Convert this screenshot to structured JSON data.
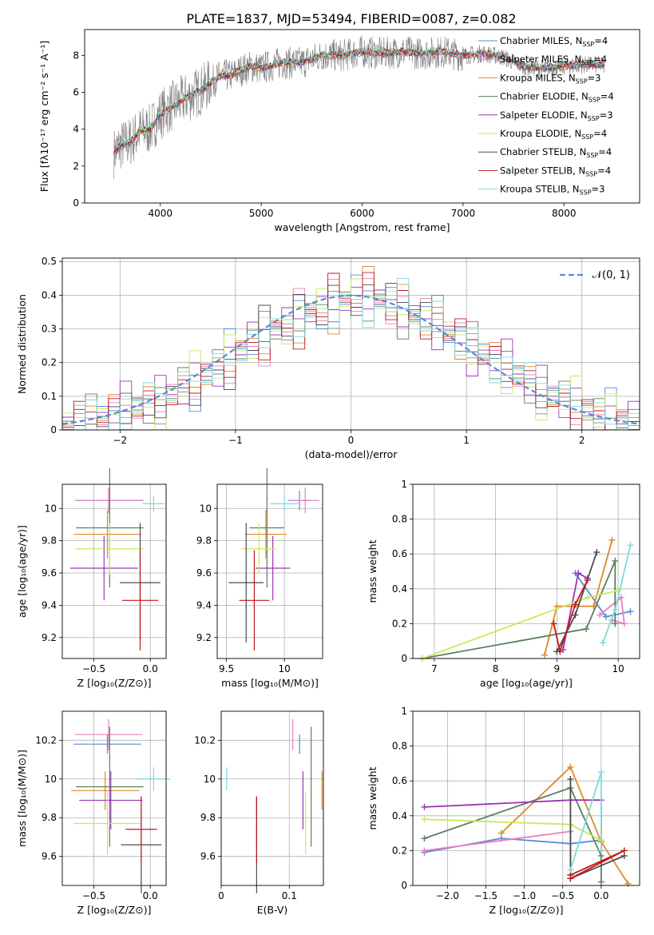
{
  "figure_title": "PLATE=1837, MJD=53494, FIBERID=0087, z=0.082",
  "colors": {
    "grid": "#b0b0b0",
    "norm_line": "#5a8ad8"
  },
  "chart_data": [
    {
      "id": "spectrum",
      "type": "line",
      "xlabel": "wavelength [Angstrom, rest frame]",
      "ylabel": "Flux [fλ10⁻¹⁷ erg cm⁻² s⁻¹ A⁻¹]",
      "xlim": [
        3250,
        8750
      ],
      "ylim": [
        0,
        9.4
      ],
      "xticks": [
        4000,
        5000,
        6000,
        7000,
        8000
      ],
      "yticks": [
        0,
        2,
        4,
        6,
        8
      ],
      "grid": false,
      "legend_placement": "upper-right",
      "data_x": [
        3540,
        3600,
        3700,
        3800,
        3900,
        4000,
        4100,
        4200,
        4300,
        4400,
        4500,
        4600,
        4700,
        4800,
        4900,
        5000,
        5200,
        5400,
        5600,
        5800,
        6000,
        6200,
        6400,
        6600,
        6800,
        7000,
        7200,
        7400,
        7600,
        7800,
        8000,
        8200,
        8400
      ],
      "data_y": [
        2.7,
        3.1,
        3.3,
        3.9,
        4.0,
        4.8,
        5.2,
        5.5,
        5.8,
        6.1,
        6.5,
        6.9,
        6.9,
        7.2,
        7.4,
        7.3,
        7.6,
        7.6,
        8.0,
        8.0,
        8.2,
        8.1,
        8.2,
        8.1,
        8.2,
        8.0,
        8.1,
        7.9,
        7.4,
        7.3,
        7.4,
        7.5,
        7.5
      ],
      "series": [
        {
          "name": "Chabrier MILES, N$_{SSP}$=4",
          "label_main": "Chabrier MILES, N",
          "color": "#5a8ad8"
        },
        {
          "name": "Salpeter MILES, N$_{SSP}$=4",
          "label_main": "Salpeter MILES, N",
          "color": "#e87fbf"
        },
        {
          "name": "Kroupa MILES, N$_{SSP}$=3",
          "label_main": "Kroupa MILES, N",
          "color": "#e08828"
        },
        {
          "name": "Chabrier ELODIE, N$_{SSP}$=4",
          "label_main": "Chabrier ELODIE, N",
          "color": "#5b7f5b"
        },
        {
          "name": "Salpeter ELODIE, N$_{SSP}$=3",
          "label_main": "Salpeter ELODIE, N",
          "color": "#9b35b3"
        },
        {
          "name": "Kroupa ELODIE, N$_{SSP}$=4",
          "label_main": "Kroupa ELODIE, N",
          "color": "#cbe85a"
        },
        {
          "name": "Chabrier STELIB, N$_{SSP}$=4",
          "label_main": "Chabrier STELIB, N",
          "color": "#4a4a4a"
        },
        {
          "name": "Salpeter STELIB, N$_{SSP}$=4",
          "label_main": "Salpeter STELIB, N",
          "color": "#c0181e"
        },
        {
          "name": "Kroupa STELIB, N$_{SSP}$=3",
          "label_main": "Kroupa STELIB, N",
          "color": "#7adcdc"
        }
      ],
      "legend": [
        {
          "main": "Chabrier MILES, N",
          "sub": "SSP",
          "tail": "=4"
        },
        {
          "main": "Salpeter MILES, N",
          "sub": "SSP",
          "tail": "=4"
        },
        {
          "main": "Kroupa MILES, N",
          "sub": "SSP",
          "tail": "=3"
        },
        {
          "main": "Chabrier ELODIE, N",
          "sub": "SSP",
          "tail": "=4"
        },
        {
          "main": "Salpeter ELODIE, N",
          "sub": "SSP",
          "tail": "=3"
        },
        {
          "main": "Kroupa ELODIE, N",
          "sub": "SSP",
          "tail": "=4"
        },
        {
          "main": "Chabrier STELIB, N",
          "sub": "SSP",
          "tail": "=4"
        },
        {
          "main": "Salpeter STELIB, N",
          "sub": "SSP",
          "tail": "=4"
        },
        {
          "main": "Kroupa STELIB, N",
          "sub": "SSP",
          "tail": "=3"
        }
      ]
    },
    {
      "id": "residuals",
      "type": "histogram",
      "xlabel": "(data-model)/error",
      "ylabel": "Normed distribution",
      "xlim": [
        -2.5,
        2.5
      ],
      "ylim": [
        0,
        0.51
      ],
      "xticks": [
        -2,
        -1,
        0,
        1,
        2
      ],
      "yticks": [
        0.0,
        0.1,
        0.2,
        0.3,
        0.4,
        0.5
      ],
      "grid": true,
      "legend_label": "𝒩(0, 1)",
      "legend_placement": "upper-right",
      "bin_width": 0.1,
      "bin_start": -2.5,
      "hist_values": [
        0.02,
        0.025,
        0.035,
        0.04,
        0.045,
        0.055,
        0.065,
        0.08,
        0.09,
        0.105,
        0.125,
        0.145,
        0.165,
        0.19,
        0.21,
        0.235,
        0.26,
        0.28,
        0.3,
        0.315,
        0.33,
        0.345,
        0.36,
        0.375,
        0.385,
        0.4,
        0.395,
        0.385,
        0.375,
        0.36,
        0.345,
        0.33,
        0.31,
        0.29,
        0.27,
        0.25,
        0.225,
        0.2,
        0.18,
        0.16,
        0.14,
        0.12,
        0.1,
        0.085,
        0.07,
        0.06,
        0.045,
        0.035,
        0.03,
        0.025
      ]
    },
    {
      "id": "age-vs-Z",
      "type": "errorbar",
      "xlabel": "Z [log₁₀(Z/Z⊙)]",
      "ylabel": "age  [log₁₀(age/yr)]",
      "xlim": [
        -0.78,
        0.14
      ],
      "ylim": [
        9.07,
        10.15
      ],
      "xticks": [
        -0.5,
        0.0
      ],
      "xticklabels": [
        "−0.5",
        "0.0"
      ],
      "yticks": [
        9.2,
        9.4,
        9.6,
        9.8,
        10.0
      ],
      "grid": true,
      "points": [
        {
          "x": -0.36,
          "xe": 0.3,
          "y": 10.05,
          "ye": 0.06
        },
        {
          "x": -0.37,
          "xe": 0.3,
          "y": 10.05,
          "ye": 0.08
        },
        {
          "x": -0.38,
          "xe": 0.3,
          "y": 9.84,
          "ye": 0.15
        },
        {
          "x": -0.36,
          "xe": 0.3,
          "y": 9.88,
          "ye": 0.37
        },
        {
          "x": -0.41,
          "xe": 0.3,
          "y": 9.63,
          "ye": 0.2
        },
        {
          "x": -0.36,
          "xe": 0.3,
          "y": 9.75,
          "ye": 0.16
        },
        {
          "x": -0.09,
          "xe": 0.18,
          "y": 9.54,
          "ye": 0.37
        },
        {
          "x": -0.09,
          "xe": 0.16,
          "y": 9.43,
          "ye": 0.31
        },
        {
          "x": 0.03,
          "xe": 0.1,
          "y": 10.03,
          "ye": 0.05
        }
      ]
    },
    {
      "id": "age-vs-mass",
      "type": "errorbar",
      "xlabel": "mass [log₁₀(M/M⊙)]",
      "ylabel": "",
      "xlim": [
        9.42,
        10.33
      ],
      "ylim": [
        9.07,
        10.15
      ],
      "xticks": [
        9.5,
        10.0
      ],
      "yticks": [
        9.2,
        9.4,
        9.6,
        9.8,
        10.0
      ],
      "grid": true,
      "points": [
        {
          "x": 10.13,
          "xe": 0.1,
          "y": 10.05,
          "ye": 0.06
        },
        {
          "x": 10.18,
          "xe": 0.12,
          "y": 10.05,
          "ye": 0.08
        },
        {
          "x": 9.84,
          "xe": 0.18,
          "y": 9.84,
          "ye": 0.15
        },
        {
          "x": 9.85,
          "xe": 0.15,
          "y": 9.88,
          "ye": 0.37
        },
        {
          "x": 9.9,
          "xe": 0.15,
          "y": 9.63,
          "ye": 0.2
        },
        {
          "x": 9.78,
          "xe": 0.15,
          "y": 9.75,
          "ye": 0.16
        },
        {
          "x": 9.67,
          "xe": 0.15,
          "y": 9.54,
          "ye": 0.37
        },
        {
          "x": 9.74,
          "xe": 0.13,
          "y": 9.43,
          "ye": 0.31
        },
        {
          "x": 10.0,
          "xe": 0.12,
          "y": 10.03,
          "ye": 0.05
        }
      ]
    },
    {
      "id": "weight-vs-age",
      "type": "line",
      "xlabel": "age  [log₁₀(age/yr)]",
      "ylabel": "mass weight",
      "xlim": [
        6.65,
        10.35
      ],
      "ylim": [
        0.0,
        1.0
      ],
      "xticks": [
        7,
        8,
        9,
        10
      ],
      "yticks": [
        0.0,
        0.2,
        0.4,
        0.6,
        0.8,
        1.0
      ],
      "grid": true,
      "series": [
        {
          "x": [
            9.3,
            9.8,
            10.2
          ],
          "y": [
            0.49,
            0.24,
            0.27
          ]
        },
        {
          "x": [
            9.7,
            10.05,
            10.1,
            9.9
          ],
          "y": [
            0.25,
            0.35,
            0.2,
            0.22
          ]
        },
        {
          "x": [
            8.8,
            9.0,
            9.6,
            9.9
          ],
          "y": [
            0.02,
            0.3,
            0.3,
            0.68
          ]
        },
        {
          "x": [
            6.8,
            9.48,
            9.95,
            9.95
          ],
          "y": [
            0.0,
            0.17,
            0.56,
            0.2
          ]
        },
        {
          "x": [
            9.1,
            9.35,
            9.5
          ],
          "y": [
            0.05,
            0.49,
            0.46
          ]
        },
        {
          "x": [
            6.8,
            9.5,
            10.0
          ],
          "y": [
            0.0,
            0.35,
            0.39
          ]
        },
        {
          "x": [
            9.0,
            9.3,
            9.65
          ],
          "y": [
            0.04,
            0.25,
            0.61
          ]
        },
        {
          "x": [
            8.95,
            9.05,
            9.3,
            9.5
          ],
          "y": [
            0.2,
            0.04,
            0.31,
            0.45
          ]
        },
        {
          "x": [
            9.75,
            9.95,
            10.2
          ],
          "y": [
            0.09,
            0.28,
            0.65
          ]
        }
      ]
    },
    {
      "id": "mass-vs-Z",
      "type": "errorbar",
      "xlabel": "Z [log₁₀(Z/Z⊙)]",
      "ylabel": "mass [log₁₀(M/M⊙)]",
      "xlim": [
        -0.78,
        0.14
      ],
      "ylim": [
        9.45,
        10.35
      ],
      "xticks": [
        -0.5,
        0.0
      ],
      "xticklabels": [
        "−0.5",
        "0.0"
      ],
      "yticks": [
        9.6,
        9.8,
        10.0,
        10.2
      ],
      "grid": true,
      "points": [
        {
          "x": -0.38,
          "xe": 0.3,
          "y": 10.18,
          "ye": 0.05
        },
        {
          "x": -0.37,
          "xe": 0.3,
          "y": 10.23,
          "ye": 0.08
        },
        {
          "x": -0.4,
          "xe": 0.3,
          "y": 9.94,
          "ye": 0.1
        },
        {
          "x": -0.36,
          "xe": 0.3,
          "y": 9.96,
          "ye": 0.31
        },
        {
          "x": -0.35,
          "xe": 0.28,
          "y": 9.89,
          "ye": 0.15
        },
        {
          "x": -0.38,
          "xe": 0.3,
          "y": 9.77,
          "ye": 0.16
        },
        {
          "x": -0.08,
          "xe": 0.18,
          "y": 9.66,
          "ye": 0.25
        },
        {
          "x": -0.08,
          "xe": 0.14,
          "y": 9.74,
          "ye": 0.17
        },
        {
          "x": 0.03,
          "xe": 0.15,
          "y": 10.0,
          "ye": 0.06
        }
      ]
    },
    {
      "id": "mass-vs-ebv",
      "type": "errorbar",
      "xlabel": "E(B-V)",
      "ylabel": "",
      "xlim": [
        0.0,
        0.15
      ],
      "ylim": [
        9.45,
        10.35
      ],
      "xticks": [
        0.0,
        0.1
      ],
      "yticks": [
        9.6,
        9.8,
        10.0,
        10.2
      ],
      "grid": true,
      "points": [
        {
          "x": 0.115,
          "xe": 0.0,
          "y": 10.18,
          "ye": 0.05
        },
        {
          "x": 0.105,
          "xe": 0.0,
          "y": 10.23,
          "ye": 0.08
        },
        {
          "x": 0.148,
          "xe": 0.0,
          "y": 9.94,
          "ye": 0.1
        },
        {
          "x": 0.132,
          "xe": 0.0,
          "y": 9.96,
          "ye": 0.31
        },
        {
          "x": 0.12,
          "xe": 0.0,
          "y": 9.89,
          "ye": 0.15
        },
        {
          "x": 0.124,
          "xe": 0.0,
          "y": 9.77,
          "ye": 0.16
        },
        {
          "x": 0.052,
          "xe": 0.0,
          "y": 9.66,
          "ye": 0.25
        },
        {
          "x": 0.052,
          "xe": 0.0,
          "y": 9.74,
          "ye": 0.17
        },
        {
          "x": 0.008,
          "xe": 0.0,
          "y": 10.0,
          "ye": 0.06
        }
      ]
    },
    {
      "id": "weight-vs-Z",
      "type": "line",
      "xlabel": "Z [log₁₀(Z/Z⊙)]",
      "ylabel": "mass weight",
      "xlim": [
        -2.45,
        0.5
      ],
      "ylim": [
        0.0,
        1.0
      ],
      "xticks": [
        -2.0,
        -1.5,
        -1.0,
        -0.5,
        0.0
      ],
      "xticklabels": [
        "−2.0",
        "−1.5",
        "−1.0",
        "−0.5",
        "0.0"
      ],
      "yticks": [
        0.0,
        0.2,
        0.4,
        0.6,
        0.8,
        1.0
      ],
      "grid": true,
      "series": [
        {
          "x": [
            -2.3,
            -1.3,
            -0.4,
            0.0
          ],
          "y": [
            0.19,
            0.27,
            0.24,
            0.26
          ]
        },
        {
          "x": [
            -2.3,
            -0.4,
            -0.4
          ],
          "y": [
            0.2,
            0.31,
            0.06
          ]
        },
        {
          "x": [
            -1.3,
            -0.4,
            0.0,
            0.35
          ],
          "y": [
            0.3,
            0.68,
            0.25,
            0.01
          ]
        },
        {
          "x": [
            -2.3,
            -0.4,
            0.0,
            0.0
          ],
          "y": [
            0.27,
            0.56,
            0.17,
            0.02
          ]
        },
        {
          "x": [
            -2.3,
            -0.4,
            0.0,
            0.0
          ],
          "y": [
            0.45,
            0.49,
            0.49,
            0.2
          ]
        },
        {
          "x": [
            -2.3,
            -0.4,
            0.0
          ],
          "y": [
            0.38,
            0.35,
            0.26
          ]
        },
        {
          "x": [
            -0.4,
            -0.4,
            0.3
          ],
          "y": [
            0.61,
            0.04,
            0.17
          ]
        },
        {
          "x": [
            -0.4,
            0.3,
            -0.4
          ],
          "y": [
            0.04,
            0.2,
            0.06
          ]
        },
        {
          "x": [
            -0.4,
            0.0,
            0.0
          ],
          "y": [
            0.09,
            0.65,
            0.2
          ]
        }
      ]
    }
  ]
}
